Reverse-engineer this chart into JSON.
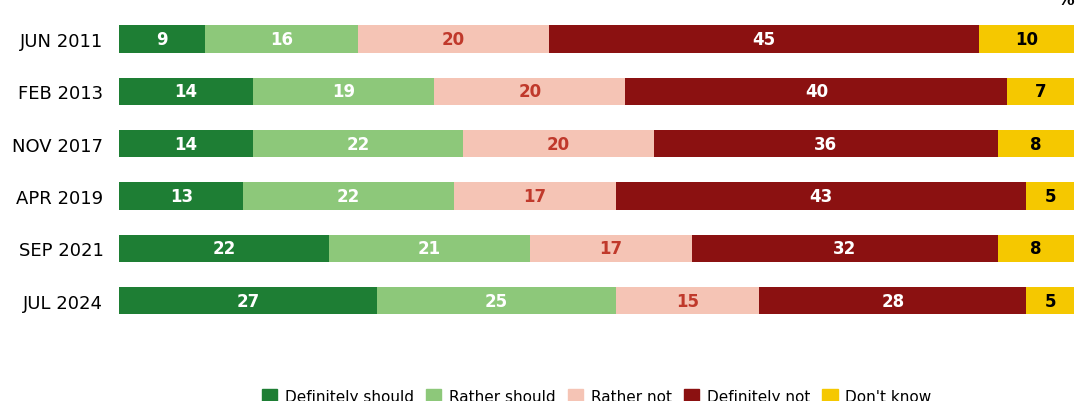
{
  "categories": [
    "JUN 2011",
    "FEB 2013",
    "NOV 2017",
    "APR 2019",
    "SEP 2021",
    "JUL 2024"
  ],
  "series": {
    "Definitely should": [
      9,
      14,
      14,
      13,
      22,
      27
    ],
    "Rather should": [
      16,
      19,
      22,
      22,
      21,
      25
    ],
    "Rather not": [
      20,
      20,
      20,
      17,
      17,
      15
    ],
    "Definitely not": [
      45,
      40,
      36,
      43,
      32,
      28
    ],
    "Don't know": [
      10,
      7,
      8,
      5,
      8,
      5
    ]
  },
  "colors": {
    "Definitely should": "#1e7e34",
    "Rather should": "#8dc87a",
    "Rather not": "#f5c4b5",
    "Definitely not": "#8b1111",
    "Don't know": "#f5c800"
  },
  "text_colors": {
    "Definitely should": "white",
    "Rather should": "white",
    "Rather not": "#c0392b",
    "Definitely not": "white",
    "Don't know": "black"
  },
  "percent_label": "%",
  "legend_order": [
    "Definitely should",
    "Rather should",
    "Rather not",
    "Definitely not",
    "Don't know"
  ],
  "figsize": [
    10.85,
    4.02
  ],
  "dpi": 100
}
